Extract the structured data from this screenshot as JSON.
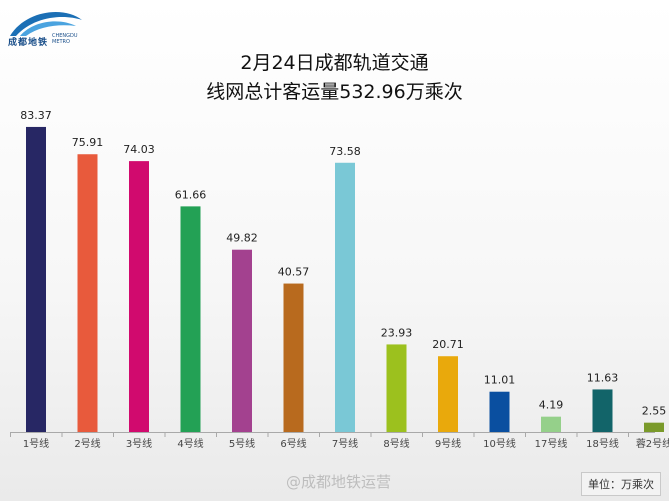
{
  "header": {
    "logo_text": "成都地铁",
    "logo_en_1": "CHENGDU",
    "logo_en_2": "METRO",
    "title_line1": "2月24日成都轨道交通",
    "title_line2": "线网总计客运量532.96万乘次"
  },
  "chart_data": {
    "type": "bar",
    "title": "2月24日成都轨道交通 线网总计客运量532.96万乘次",
    "unit_label": "单位：万乘次",
    "categories": [
      "1号线",
      "2号线",
      "3号线",
      "4号线",
      "5号线",
      "6号线",
      "7号线",
      "8号线",
      "9号线",
      "10号线",
      "17号线",
      "18号线",
      "蓉2号线"
    ],
    "values": [
      83.37,
      75.91,
      74.03,
      61.66,
      49.82,
      40.57,
      73.58,
      23.93,
      20.71,
      11.01,
      4.19,
      11.63,
      2.55
    ],
    "labels": [
      "83.37",
      "75.91",
      "74.03",
      "61.66",
      "49.82",
      "40.57",
      "73.58",
      "23.93",
      "20.71",
      "11.01",
      "4.19",
      "11.63",
      "2.55"
    ],
    "colors": [
      "#272764",
      "#e85a3c",
      "#d10a6e",
      "#23a155",
      "#a3418f",
      "#b86a1e",
      "#7ac8d6",
      "#9cc11e",
      "#e9a90c",
      "#0a4fa0",
      "#95d08a",
      "#126469",
      "#7a9a2a"
    ],
    "ylim": [
      0,
      88
    ]
  },
  "watermark": "@成都地铁运营"
}
